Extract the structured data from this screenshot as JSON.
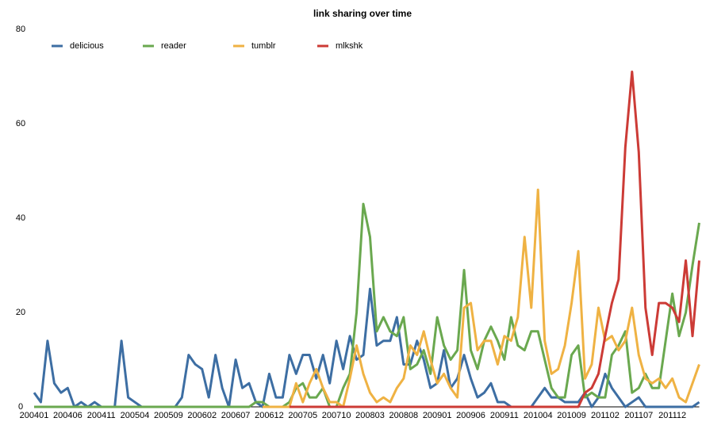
{
  "chart_data": {
    "type": "line",
    "title": "link sharing over time",
    "categories": [
      "200401",
      null,
      null,
      null,
      null,
      "200406",
      null,
      null,
      null,
      null,
      "200411",
      null,
      null,
      null,
      null,
      "200504",
      null,
      null,
      null,
      null,
      "200509",
      null,
      null,
      null,
      null,
      "200602",
      null,
      null,
      null,
      null,
      "200607",
      null,
      null,
      null,
      null,
      "200612",
      null,
      null,
      null,
      null,
      "200705",
      null,
      null,
      null,
      null,
      "200710",
      null,
      null,
      null,
      null,
      "200803",
      null,
      null,
      null,
      null,
      "200808",
      null,
      null,
      null,
      null,
      "200901",
      null,
      null,
      null,
      null,
      "200906",
      null,
      null,
      null,
      null,
      "200911",
      null,
      null,
      null,
      null,
      "201004",
      null,
      null,
      null,
      null,
      "201009",
      null,
      null,
      null,
      null,
      "201102",
      null,
      null,
      null,
      null,
      "201107",
      null,
      null,
      null,
      null,
      "201112",
      null,
      null,
      null,
      null
    ],
    "ylim": [
      0,
      80
    ],
    "yticks": [
      0,
      20,
      40,
      60,
      80
    ],
    "grid": false,
    "legend": "top-left",
    "series": [
      {
        "name": "delicious",
        "color": "#3d6ea3",
        "values": [
          3,
          1,
          14,
          5,
          3,
          4,
          0,
          1,
          0,
          1,
          0,
          0,
          0,
          14,
          2,
          1,
          0,
          0,
          0,
          0,
          0,
          0,
          2,
          11,
          9,
          8,
          2,
          11,
          4,
          0,
          10,
          4,
          5,
          1,
          0,
          7,
          2,
          2,
          11,
          7,
          11,
          11,
          6,
          11,
          5,
          14,
          8,
          15,
          10,
          11,
          25,
          13,
          14,
          14,
          19,
          9,
          9,
          14,
          10,
          4,
          5,
          12,
          4,
          6,
          11,
          6,
          2,
          3,
          5,
          1,
          1,
          0,
          0,
          0,
          0,
          2,
          4,
          2,
          2,
          1,
          1,
          1,
          3,
          0,
          2,
          7,
          4,
          2,
          0,
          1,
          2,
          0,
          0,
          0,
          0,
          0,
          0,
          0,
          0,
          1
        ]
      },
      {
        "name": "reader",
        "color": "#6aa84f",
        "values": [
          0,
          0,
          0,
          0,
          0,
          0,
          0,
          0,
          0,
          0,
          0,
          0,
          0,
          0,
          0,
          0,
          0,
          0,
          0,
          0,
          0,
          0,
          0,
          0,
          0,
          0,
          0,
          0,
          0,
          0,
          0,
          0,
          0,
          1,
          1,
          0,
          0,
          0,
          1,
          4,
          5,
          2,
          2,
          4,
          0,
          0,
          4,
          7,
          20,
          43,
          36,
          16,
          19,
          16,
          15,
          19,
          8,
          9,
          12,
          7,
          19,
          13,
          10,
          12,
          29,
          12,
          8,
          14,
          17,
          14,
          10,
          19,
          13,
          12,
          16,
          16,
          10,
          4,
          2,
          2,
          11,
          13,
          2,
          3,
          2,
          2,
          11,
          13,
          16,
          3,
          4,
          7,
          4,
          4,
          14,
          24,
          15,
          20,
          30,
          39
        ]
      },
      {
        "name": "tumblr",
        "color": "#efb243",
        "values": [
          null,
          null,
          null,
          null,
          null,
          null,
          null,
          null,
          null,
          null,
          null,
          null,
          null,
          null,
          null,
          null,
          null,
          null,
          null,
          null,
          null,
          null,
          null,
          null,
          null,
          null,
          null,
          null,
          null,
          null,
          null,
          null,
          null,
          null,
          0,
          0,
          0,
          0,
          0,
          5,
          1,
          5,
          8,
          4,
          1,
          1,
          0,
          6,
          13,
          7,
          3,
          1,
          2,
          1,
          4,
          6,
          13,
          11,
          16,
          10,
          5,
          7,
          4,
          2,
          21,
          22,
          12,
          14,
          14,
          9,
          15,
          14,
          19,
          36,
          21,
          46,
          14,
          7,
          8,
          13,
          22,
          33,
          6,
          9,
          21,
          14,
          15,
          12,
          14,
          21,
          11,
          6,
          5,
          6,
          4,
          6,
          2,
          1,
          5,
          9
        ]
      },
      {
        "name": "mlkshk",
        "color": "#cc3b36",
        "values": [
          null,
          null,
          null,
          null,
          null,
          null,
          null,
          null,
          null,
          null,
          null,
          null,
          null,
          null,
          null,
          null,
          null,
          null,
          null,
          null,
          null,
          null,
          null,
          null,
          null,
          null,
          null,
          null,
          null,
          null,
          null,
          null,
          null,
          null,
          null,
          null,
          null,
          null,
          0,
          0,
          0,
          0,
          0,
          0,
          0,
          0,
          0,
          0,
          0,
          0,
          0,
          0,
          0,
          0,
          0,
          0,
          0,
          0,
          0,
          0,
          0,
          0,
          0,
          0,
          0,
          0,
          0,
          0,
          0,
          0,
          0,
          0,
          0,
          0,
          0,
          0,
          0,
          0,
          0,
          0,
          0,
          0,
          3,
          4,
          7,
          15,
          22,
          27,
          55,
          71,
          54,
          21,
          11,
          22,
          22,
          21,
          18,
          31,
          15,
          31
        ]
      }
    ]
  }
}
